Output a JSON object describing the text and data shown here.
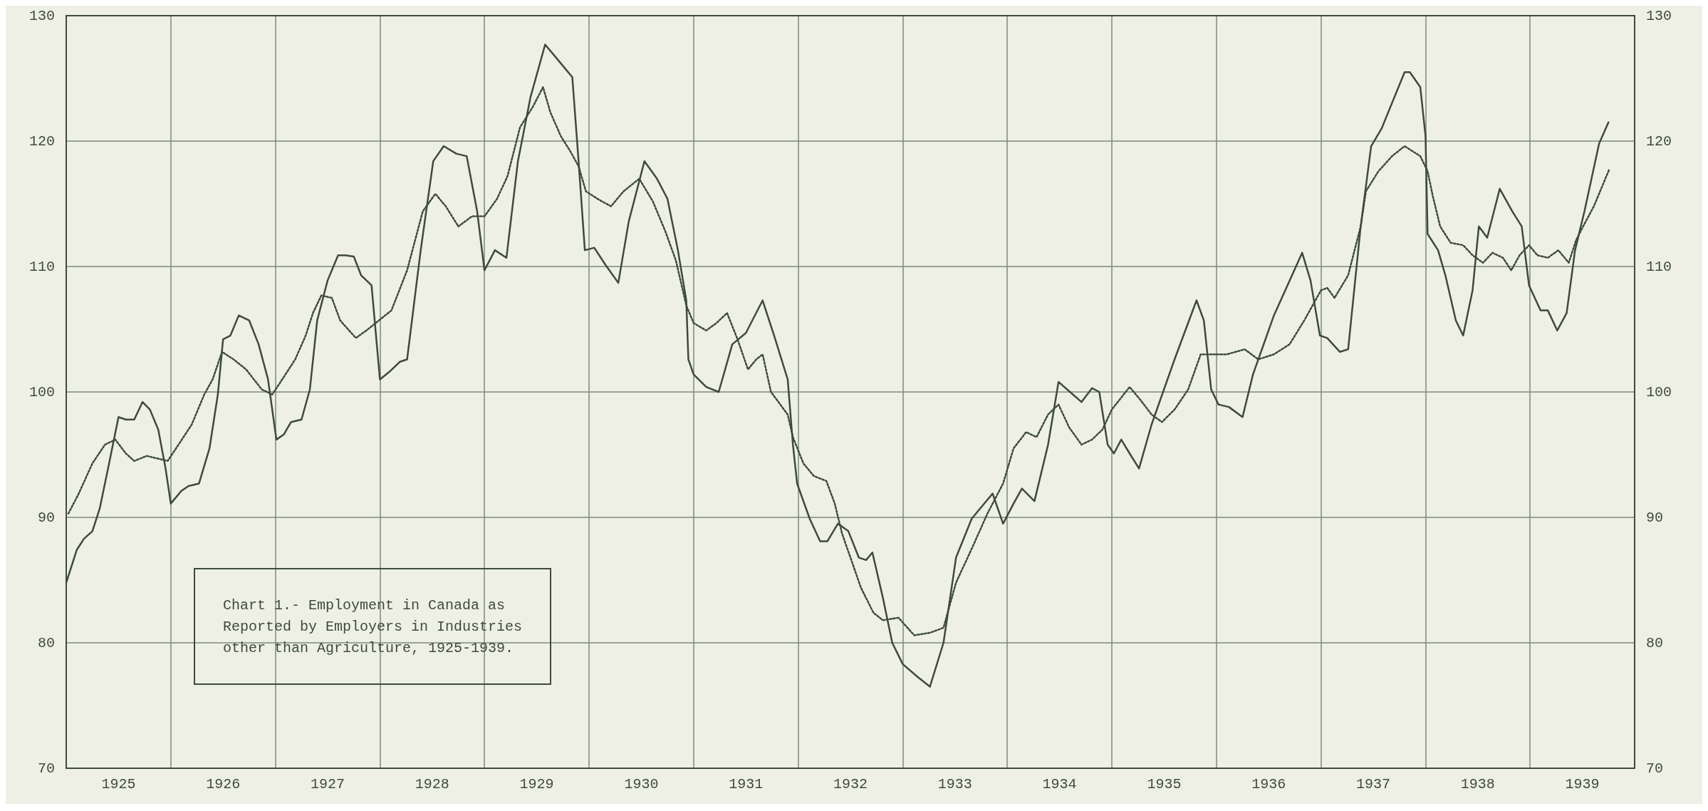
{
  "chart_data": {
    "type": "line",
    "title": "Chart 1.- Employment in Canada as\nReported by Employers in Industries\nother than Agriculture, 1925-1939.",
    "xlim": [
      1925,
      1940
    ],
    "xticks": [
      {
        "value": 1925,
        "label": null
      },
      {
        "value": 1925.5,
        "label": "1925"
      },
      {
        "value": 1926,
        "label": null
      },
      {
        "value": 1926.5,
        "label": "1926"
      },
      {
        "value": 1927,
        "label": null
      },
      {
        "value": 1927.5,
        "label": "1927"
      },
      {
        "value": 1928,
        "label": null
      },
      {
        "value": 1928.5,
        "label": "1928"
      },
      {
        "value": 1929,
        "label": null
      },
      {
        "value": 1929.5,
        "label": "1929"
      },
      {
        "value": 1930,
        "label": null
      },
      {
        "value": 1930.5,
        "label": "1930"
      },
      {
        "value": 1931,
        "label": null
      },
      {
        "value": 1931.5,
        "label": "1931"
      },
      {
        "value": 1932,
        "label": null
      },
      {
        "value": 1932.5,
        "label": "1932"
      },
      {
        "value": 1933,
        "label": null
      },
      {
        "value": 1933.5,
        "label": "1933"
      },
      {
        "value": 1934,
        "label": null
      },
      {
        "value": 1934.5,
        "label": "1934"
      },
      {
        "value": 1935,
        "label": null
      },
      {
        "value": 1935.5,
        "label": "1935"
      },
      {
        "value": 1936,
        "label": null
      },
      {
        "value": 1936.5,
        "label": "1936"
      },
      {
        "value": 1937,
        "label": null
      },
      {
        "value": 1937.5,
        "label": "1937"
      },
      {
        "value": 1938,
        "label": null
      },
      {
        "value": 1938.5,
        "label": "1938"
      },
      {
        "value": 1939,
        "label": null
      },
      {
        "value": 1939.5,
        "label": "1939"
      },
      {
        "value": 1940,
        "label": null
      }
    ],
    "ylim": [
      70,
      130
    ],
    "yticks": [
      70,
      80,
      90,
      100,
      110,
      120,
      130
    ],
    "y2lim": [
      70,
      130
    ],
    "y2ticks": [
      70,
      80,
      90,
      100,
      110,
      120,
      130
    ],
    "grid": true,
    "marker": "none",
    "series": [
      {
        "color": "#3e4a3c",
        "line_style": "solid",
        "x": [
          1925.0,
          1925.1,
          1925.17,
          1925.25,
          1925.32,
          1925.4,
          1925.5,
          1925.57,
          1925.65,
          1925.73,
          1925.8,
          1925.88,
          1925.95,
          1926.0,
          1926.1,
          1926.17,
          1926.27,
          1926.37,
          1926.45,
          1926.5,
          1926.57,
          1926.65,
          1926.75,
          1926.84,
          1926.93,
          1927.01,
          1927.08,
          1927.15,
          1927.25,
          1927.33,
          1927.4,
          1927.5,
          1927.6,
          1927.67,
          1927.75,
          1927.82,
          1927.92,
          1928.0,
          1928.09,
          1928.19,
          1928.26,
          1928.39,
          1928.51,
          1928.61,
          1928.73,
          1928.83,
          1928.93,
          1929.0,
          1929.1,
          1929.21,
          1929.32,
          1929.44,
          1929.58,
          1929.72,
          1929.84,
          1929.9,
          1929.96,
          1930.05,
          1930.16,
          1930.28,
          1930.38,
          1930.53,
          1930.65,
          1930.75,
          1930.85,
          1930.93,
          1930.95,
          1931.0,
          1931.12,
          1931.24,
          1931.37,
          1931.5,
          1931.66,
          1931.77,
          1931.9,
          1931.95,
          1931.99,
          1932.11,
          1932.21,
          1932.28,
          1932.38,
          1932.48,
          1932.58,
          1932.65,
          1932.71,
          1932.81,
          1932.9,
          1933.0,
          1933.14,
          1933.26,
          1933.39,
          1933.51,
          1933.66,
          1933.86,
          1933.96,
          1934.06,
          1934.14,
          1934.26,
          1934.39,
          1934.49,
          1934.6,
          1934.71,
          1934.81,
          1934.88,
          1934.96,
          1935.02,
          1935.09,
          1935.17,
          1935.26,
          1935.38,
          1935.6,
          1935.81,
          1935.88,
          1935.95,
          1936.02,
          1936.12,
          1936.25,
          1936.35,
          1936.55,
          1936.82,
          1936.9,
          1936.99,
          1937.06,
          1937.18,
          1937.26,
          1937.38,
          1937.48,
          1937.58,
          1937.8,
          1937.85,
          1937.95,
          1938.0,
          1938.02,
          1938.12,
          1938.19,
          1938.29,
          1938.36,
          1938.45,
          1938.51,
          1938.59,
          1938.71,
          1938.83,
          1938.92,
          1938.99,
          1939.1,
          1939.17,
          1939.26,
          1939.35,
          1939.43,
          1939.52,
          1939.66,
          1939.75
        ],
        "values": [
          84.8,
          87.4,
          88.3,
          88.9,
          90.7,
          93.9,
          98.0,
          97.8,
          97.8,
          99.2,
          98.6,
          97.0,
          93.9,
          91.1,
          92.1,
          92.5,
          92.7,
          95.5,
          99.8,
          104.2,
          104.5,
          106.1,
          105.7,
          103.8,
          101.0,
          96.2,
          96.6,
          97.6,
          97.8,
          100.2,
          105.7,
          108.9,
          110.9,
          110.9,
          110.8,
          109.3,
          108.5,
          101.0,
          101.6,
          102.4,
          102.6,
          111.3,
          118.4,
          119.6,
          119.0,
          118.8,
          114.4,
          109.7,
          111.3,
          110.7,
          118.4,
          123.5,
          127.7,
          126.3,
          125.1,
          118.4,
          111.3,
          111.5,
          110.1,
          108.7,
          113.6,
          118.4,
          117.0,
          115.4,
          111.3,
          107.3,
          102.6,
          101.4,
          100.4,
          100.0,
          103.8,
          104.7,
          107.3,
          104.5,
          101.0,
          95.8,
          92.7,
          89.9,
          88.1,
          88.1,
          89.5,
          88.9,
          86.8,
          86.6,
          87.2,
          83.6,
          80.0,
          78.3,
          77.3,
          76.5,
          80.0,
          86.8,
          89.9,
          91.9,
          89.5,
          91.1,
          92.3,
          91.3,
          95.8,
          100.8,
          100.0,
          99.2,
          100.3,
          100.0,
          95.8,
          95.1,
          96.2,
          95.1,
          93.9,
          97.4,
          102.6,
          107.3,
          105.7,
          100.2,
          99.0,
          98.8,
          98.0,
          101.4,
          106.1,
          111.1,
          108.9,
          104.5,
          104.3,
          103.2,
          103.4,
          113.2,
          119.6,
          121.0,
          125.5,
          125.5,
          124.3,
          120.4,
          112.6,
          111.3,
          109.3,
          105.7,
          104.5,
          108.1,
          113.2,
          112.3,
          116.2,
          114.4,
          113.2,
          108.5,
          106.5,
          106.5,
          104.9,
          106.3,
          111.3,
          114.4,
          119.8,
          121.5
        ]
      },
      {
        "color": "#3e4a3c",
        "line_style": "dotted",
        "x": [
          1925.02,
          1925.12,
          1925.25,
          1925.37,
          1925.47,
          1925.57,
          1925.65,
          1925.77,
          1925.87,
          1925.97,
          1926.05,
          1926.2,
          1926.32,
          1926.4,
          1926.49,
          1926.6,
          1926.72,
          1926.87,
          1926.97,
          1927.05,
          1927.19,
          1927.29,
          1927.36,
          1927.44,
          1927.54,
          1927.62,
          1927.77,
          1927.87,
          1927.99,
          1928.11,
          1928.26,
          1928.41,
          1928.53,
          1928.63,
          1928.75,
          1928.88,
          1929.0,
          1929.12,
          1929.22,
          1929.34,
          1929.46,
          1929.56,
          1929.63,
          1929.73,
          1929.82,
          1929.9,
          1929.97,
          1930.08,
          1930.21,
          1930.33,
          1930.48,
          1930.61,
          1930.73,
          1930.83,
          1930.93,
          1931.0,
          1931.12,
          1931.22,
          1931.32,
          1931.42,
          1931.52,
          1931.6,
          1931.66,
          1931.74,
          1931.9,
          1931.95,
          1932.05,
          1932.15,
          1932.27,
          1932.35,
          1932.42,
          1932.5,
          1932.6,
          1932.72,
          1932.81,
          1932.96,
          1933.11,
          1933.26,
          1933.39,
          1933.51,
          1933.66,
          1933.81,
          1933.96,
          1934.06,
          1934.18,
          1934.28,
          1934.39,
          1934.49,
          1934.59,
          1934.71,
          1934.81,
          1934.91,
          1935.0,
          1935.17,
          1935.27,
          1935.38,
          1935.48,
          1935.6,
          1935.73,
          1935.85,
          1935.98,
          1936.1,
          1936.27,
          1936.4,
          1936.55,
          1936.7,
          1936.84,
          1937.0,
          1937.06,
          1937.13,
          1937.26,
          1937.38,
          1937.43,
          1937.55,
          1937.68,
          1937.8,
          1937.95,
          1938.02,
          1938.07,
          1938.14,
          1938.24,
          1938.36,
          1938.45,
          1938.55,
          1938.64,
          1938.74,
          1938.82,
          1938.9,
          1938.99,
          1939.07,
          1939.17,
          1939.27,
          1939.37,
          1939.44,
          1939.52,
          1939.61,
          1939.76
        ],
        "values": [
          90.3,
          91.9,
          94.3,
          95.8,
          96.2,
          95.1,
          94.5,
          94.9,
          94.7,
          94.5,
          95.5,
          97.4,
          99.8,
          101.0,
          103.2,
          102.6,
          101.8,
          100.2,
          99.8,
          100.8,
          102.6,
          104.5,
          106.3,
          107.7,
          107.5,
          105.7,
          104.3,
          104.9,
          105.7,
          106.5,
          109.7,
          114.4,
          115.8,
          114.8,
          113.2,
          114.0,
          114.0,
          115.4,
          117.2,
          121.1,
          122.7,
          124.3,
          122.3,
          120.4,
          119.2,
          118.0,
          116.0,
          115.4,
          114.8,
          116.0,
          117.0,
          115.2,
          112.8,
          110.5,
          106.9,
          105.5,
          104.9,
          105.5,
          106.3,
          104.2,
          101.8,
          102.6,
          103.0,
          100.0,
          98.2,
          96.4,
          94.3,
          93.3,
          92.9,
          91.1,
          88.7,
          86.8,
          84.4,
          82.4,
          81.8,
          82.0,
          80.6,
          80.8,
          81.2,
          84.8,
          87.5,
          90.3,
          92.7,
          95.5,
          96.8,
          96.4,
          98.2,
          99.0,
          97.2,
          95.8,
          96.2,
          97.0,
          98.6,
          100.4,
          99.4,
          98.2,
          97.6,
          98.6,
          100.2,
          103.0,
          103.0,
          103.0,
          103.4,
          102.6,
          103.0,
          103.8,
          105.7,
          108.1,
          108.3,
          107.5,
          109.3,
          113.2,
          116.0,
          117.6,
          118.8,
          119.6,
          118.8,
          117.6,
          115.6,
          113.2,
          111.9,
          111.7,
          110.9,
          110.3,
          111.1,
          110.7,
          109.7,
          110.9,
          111.7,
          110.9,
          110.7,
          111.3,
          110.3,
          112.1,
          113.4,
          114.8,
          117.8
        ]
      }
    ]
  }
}
